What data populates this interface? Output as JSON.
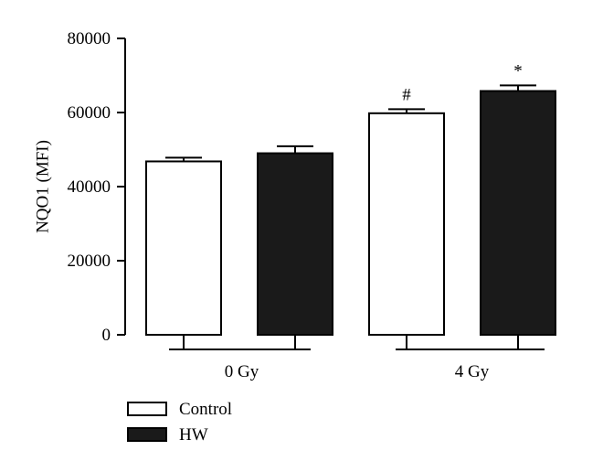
{
  "chart_data": {
    "type": "bar",
    "title": "",
    "xlabel": "",
    "ylabel": "NQO1 (MFI)",
    "ylim": [
      0,
      80000
    ],
    "yticks": [
      0,
      20000,
      40000,
      60000,
      80000
    ],
    "ytick_labels": [
      "0",
      "20000",
      "40000",
      "60000",
      "80000"
    ],
    "categories": [
      "0 Gy",
      "4 Gy"
    ],
    "series": [
      {
        "name": "Control",
        "fill": "#ffffff",
        "values": [
          46800,
          59800
        ],
        "errors": [
          1000,
          1100
        ],
        "annotations": [
          "",
          "#"
        ]
      },
      {
        "name": "HW",
        "fill": "#1a1a1a",
        "values": [
          49000,
          65800
        ],
        "errors": [
          1900,
          1500
        ],
        "annotations": [
          "",
          "*"
        ]
      }
    ],
    "grid": false,
    "legend": "bottom-left"
  }
}
